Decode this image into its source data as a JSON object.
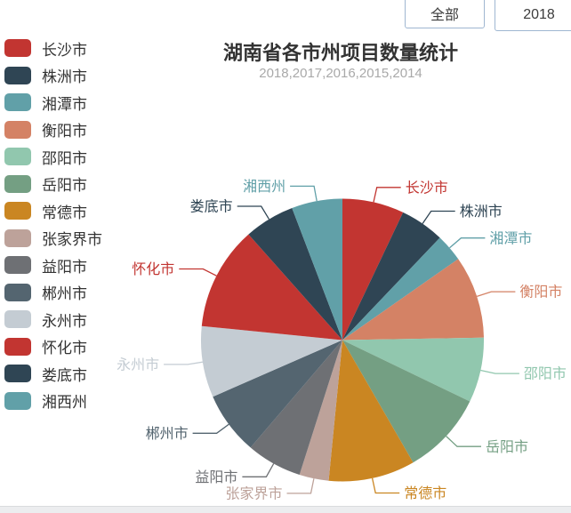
{
  "header": {
    "title": "湖南省各市州项目数量统计",
    "subtitle": "2018,2017,2016,2015,2014"
  },
  "toolbar": {
    "border_color": "#9fb6d1",
    "buttons": [
      {
        "label": "全部"
      },
      {
        "label": "2018"
      }
    ]
  },
  "chart_data": {
    "type": "pie",
    "title": "湖南省各市州项目数量统计",
    "subtitle": "2018,2017,2016,2015,2014",
    "legend_position": "left",
    "legend_entries": [
      "长沙市",
      "株洲市",
      "湘潭市",
      "衡阳市",
      "邵阳市",
      "岳阳市",
      "常德市",
      "张家界市",
      "益阳市",
      "郴州市",
      "永州市",
      "怀化市",
      "娄底市",
      "湘西州"
    ],
    "start_angle": "top, clockwise",
    "value_labels_shown": false,
    "estimation_note": "numeric values not displayed on chart; percents estimated from slice angles",
    "slices": [
      {
        "name": "长沙市",
        "color": "#c23531",
        "angle_deg": 25.4,
        "percent": 7.1
      },
      {
        "name": "株洲市",
        "color": "#2f4554",
        "angle_deg": 18.2,
        "percent": 5.1
      },
      {
        "name": "湘潭市",
        "color": "#61a0a8",
        "angle_deg": 11.4,
        "percent": 3.2
      },
      {
        "name": "衡阳市",
        "color": "#d48265",
        "angle_deg": 34.0,
        "percent": 9.4
      },
      {
        "name": "邵阳市",
        "color": "#91c7ae",
        "angle_deg": 26.7,
        "percent": 7.4
      },
      {
        "name": "岳阳市",
        "color": "#749f83",
        "angle_deg": 34.3,
        "percent": 9.5
      },
      {
        "name": "常德市",
        "color": "#ca8622",
        "angle_deg": 35.6,
        "percent": 9.9
      },
      {
        "name": "张家界市",
        "color": "#bda29a",
        "angle_deg": 12.1,
        "percent": 3.4
      },
      {
        "name": "益阳市",
        "color": "#6e7074",
        "angle_deg": 22.8,
        "percent": 6.3
      },
      {
        "name": "郴州市",
        "color": "#546570",
        "angle_deg": 25.9,
        "percent": 7.2
      },
      {
        "name": "永州市",
        "color": "#c4ccd3",
        "angle_deg": 29.3,
        "percent": 8.1
      },
      {
        "name": "怀化市",
        "color": "#c23531",
        "angle_deg": 42.7,
        "percent": 11.9
      },
      {
        "name": "娄底市",
        "color": "#2f4554",
        "angle_deg": 20.7,
        "percent": 5.8
      },
      {
        "name": "湘西州",
        "color": "#61a0a8",
        "angle_deg": 20.9,
        "percent": 5.8
      }
    ]
  }
}
